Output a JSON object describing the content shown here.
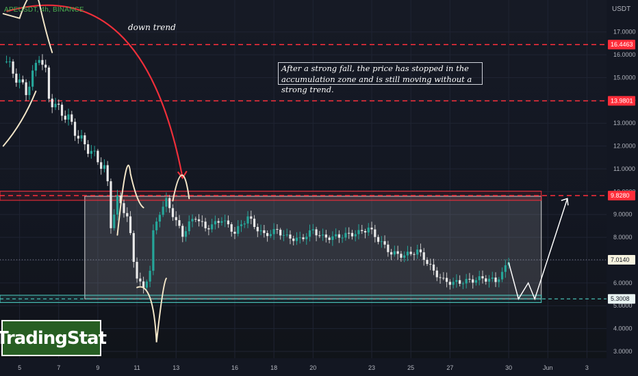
{
  "symbol_label": "APEUSDT, 4h, BINANCE",
  "price_axis_title": "USDT",
  "annotation": "After a strong fall, the price has stopped in the accumulation zone and is still moving without a strong trend.",
  "trend_label": "down trend",
  "logo_text": "TradingStat",
  "colors": {
    "up": "#26a69a",
    "down": "#ef5350",
    "background": "#131722",
    "red_arrow": "#ef2f3a",
    "resistance": "#ff2e3a",
    "support": "#4dd0c4",
    "sketch": "#f3e6c8",
    "logo_bg": "#275e23"
  },
  "chart_data": {
    "type": "candlestick",
    "yaxis": {
      "unit": "USDT",
      "ticks": [
        "17.0000",
        "16.0000",
        "15.0000",
        "14.0000",
        "13.0000",
        "12.0000",
        "11.0000",
        "10.0000",
        "9.0000",
        "8.0000",
        "7.0000",
        "6.0000",
        "5.0000",
        "4.0000",
        "3.0000"
      ],
      "tick_values": [
        17,
        16,
        15,
        14,
        13,
        12,
        11,
        10,
        9,
        8,
        7,
        6,
        5,
        4,
        3
      ],
      "range": [
        2.7,
        18.4
      ]
    },
    "xaxis": {
      "ticks": [
        "5",
        "7",
        "9",
        "11",
        "13",
        "16",
        "18",
        "20",
        "23",
        "25",
        "27",
        "30",
        "Jun",
        "3"
      ],
      "tick_index": [
        4,
        16,
        28,
        40,
        52,
        70,
        82,
        94,
        112,
        124,
        136,
        154,
        166,
        178
      ],
      "range": [
        -2,
        184
      ]
    },
    "price_levels": [
      {
        "label": "16.4463",
        "value": 16.4463,
        "style": "dashed-red"
      },
      {
        "label": "13.9801",
        "value": 13.9801,
        "style": "dashed-red"
      },
      {
        "label": "9.8280",
        "value": 9.828,
        "style": "dashed-red"
      },
      {
        "label": "7.0140",
        "value": 7.014,
        "style": "dotted-current"
      },
      {
        "label": "5.3008",
        "value": 5.3008,
        "style": "dashed-support"
      }
    ],
    "zones": [
      {
        "name": "accumulation",
        "from": 5.3,
        "to": 9.8,
        "x_start": 24,
        "x_end": 164
      },
      {
        "name": "resistance",
        "from": 9.62,
        "to": 10.02,
        "x_start": -2,
        "x_end": 164
      },
      {
        "name": "support",
        "from": 5.14,
        "to": 5.46,
        "x_start": -2,
        "x_end": 164
      }
    ],
    "close_path": [
      [
        0,
        15.7
      ],
      [
        3,
        15.0
      ],
      [
        6,
        14.4
      ],
      [
        8,
        15.1
      ],
      [
        10,
        16.0
      ],
      [
        12,
        15.2
      ],
      [
        13,
        14.1
      ],
      [
        16,
        13.6
      ],
      [
        19,
        13.2
      ],
      [
        22,
        12.4
      ],
      [
        25,
        11.9
      ],
      [
        28,
        11.4
      ],
      [
        30,
        11.0
      ],
      [
        31,
        10.3
      ],
      [
        32,
        8.6
      ],
      [
        34,
        9.6
      ],
      [
        36,
        9.3
      ],
      [
        37,
        8.9
      ],
      [
        39,
        7.0
      ],
      [
        40,
        6.3
      ],
      [
        42,
        5.7
      ],
      [
        44,
        6.6
      ],
      [
        45,
        8.2
      ],
      [
        47,
        9.1
      ],
      [
        49,
        9.6
      ],
      [
        51,
        9.0
      ],
      [
        54,
        8.1
      ],
      [
        56,
        8.6
      ],
      [
        58,
        8.9
      ],
      [
        61,
        8.4
      ],
      [
        64,
        8.6
      ],
      [
        66,
        8.8
      ],
      [
        70,
        8.2
      ],
      [
        74,
        8.9
      ],
      [
        76,
        8.5
      ],
      [
        79,
        8.1
      ],
      [
        83,
        8.3
      ],
      [
        86,
        8.0
      ],
      [
        90,
        7.9
      ],
      [
        94,
        8.3
      ],
      [
        97,
        8.0
      ],
      [
        100,
        8.0
      ],
      [
        104,
        8.1
      ],
      [
        108,
        8.2
      ],
      [
        111,
        8.4
      ],
      [
        114,
        7.9
      ],
      [
        118,
        7.3
      ],
      [
        122,
        7.2
      ],
      [
        126,
        7.4
      ],
      [
        128,
        7.1
      ],
      [
        131,
        6.5
      ],
      [
        134,
        6.1
      ],
      [
        137,
        6.0
      ],
      [
        142,
        6.1
      ],
      [
        146,
        6.2
      ],
      [
        150,
        6.1
      ],
      [
        152,
        6.4
      ],
      [
        154,
        7.0
      ]
    ],
    "projection": [
      [
        154,
        6.9
      ],
      [
        157,
        5.3
      ],
      [
        160,
        6.0
      ],
      [
        162,
        5.3
      ],
      [
        172,
        9.7
      ]
    ]
  }
}
